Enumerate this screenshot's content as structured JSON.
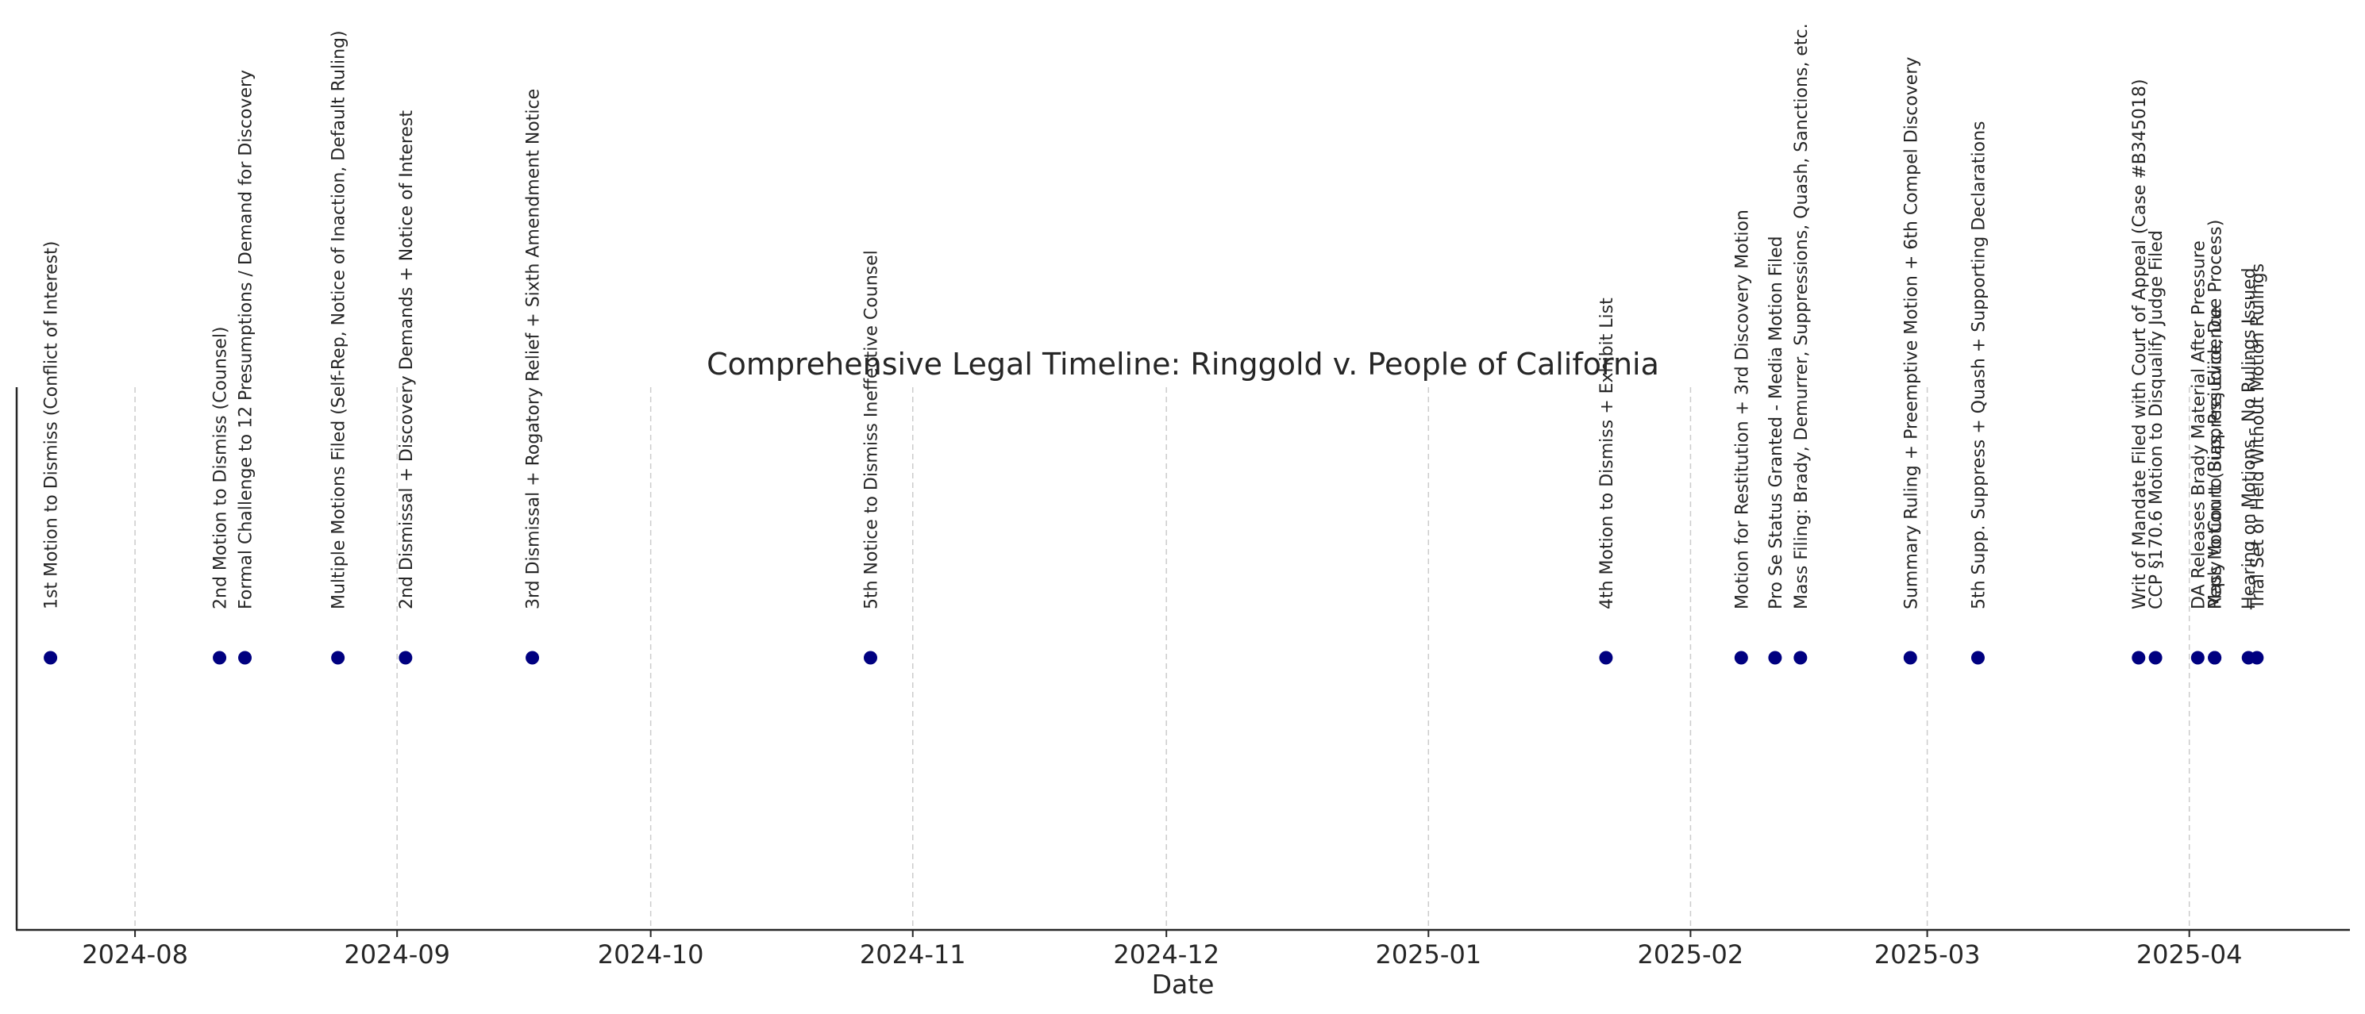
{
  "chart_data": {
    "type": "scatter",
    "title": "Comprehensive Legal Timeline: Ringgold v. People of California",
    "xlabel": "Date",
    "ylabel": "",
    "x_axis_type": "date",
    "x_ticks": [
      "2024-08",
      "2024-09",
      "2024-10",
      "2024-11",
      "2024-12",
      "2025-01",
      "2025-02",
      "2025-03",
      "2025-04"
    ],
    "xlim": [
      "2024-07-18",
      "2025-04-20"
    ],
    "grid": "vertical dashed at month ticks",
    "marker_color": "#000080",
    "events": [
      {
        "date": "2024-07-22",
        "label": "1st Motion to Dismiss (Conflict of Interest)"
      },
      {
        "date": "2024-08-11",
        "label": "2nd Motion to Dismiss (Counsel)"
      },
      {
        "date": "2024-08-14",
        "label": "Formal Challenge to 12 Presumptions / Demand for Discovery"
      },
      {
        "date": "2024-08-25",
        "label": "Multiple Motions Filed (Self-Rep, Notice of Inaction, Default Ruling)"
      },
      {
        "date": "2024-09-02",
        "label": "2nd Dismissal + Discovery Demands + Notice of Interest"
      },
      {
        "date": "2024-09-17",
        "label": "3rd Dismissal + Rogatory Relief + Sixth Amendment Notice"
      },
      {
        "date": "2024-10-27",
        "label": "5th Notice to Dismiss Ineffective Counsel"
      },
      {
        "date": "2025-01-22",
        "label": "4th Motion to Dismiss + Exhibit List"
      },
      {
        "date": "2025-02-07",
        "label": "Motion for Restitution + 3rd Discovery Motion"
      },
      {
        "date": "2025-02-11",
        "label": "Pro Se Status Granted - Media Motion Filed"
      },
      {
        "date": "2025-02-14",
        "label": "Mass Filing: Brady, Demurrer, Suppressions, Quash, Sanctions, etc."
      },
      {
        "date": "2025-02-27",
        "label": "Summary Ruling + Preemptive Motion + 6th Compel Discovery"
      },
      {
        "date": "2025-03-07",
        "label": "5th Supp. Suppress + Quash + Supporting Declarations"
      },
      {
        "date": "2025-03-26",
        "label": "Writ of Mandate Filed with Court of Appeal (Case #B345018)"
      },
      {
        "date": "2025-03-28",
        "label": "CCP §170.6 Motion to Disqualify Judge Filed"
      },
      {
        "date": "2025-04-02",
        "label": "DA Releases Brady Material After Pressure"
      },
      {
        "date": "2025-04-04",
        "label": "Reply to Court (Bias, Prejudice, Due Process)"
      },
      {
        "date": "2025-04-04",
        "label": "Mass Motion to Suppress Evidence"
      },
      {
        "date": "2025-04-08",
        "label": "Hearing on Motions - No Rulings Issued"
      },
      {
        "date": "2025-04-09",
        "label": "Trial Set or Held Without Motion Rulings"
      }
    ]
  }
}
